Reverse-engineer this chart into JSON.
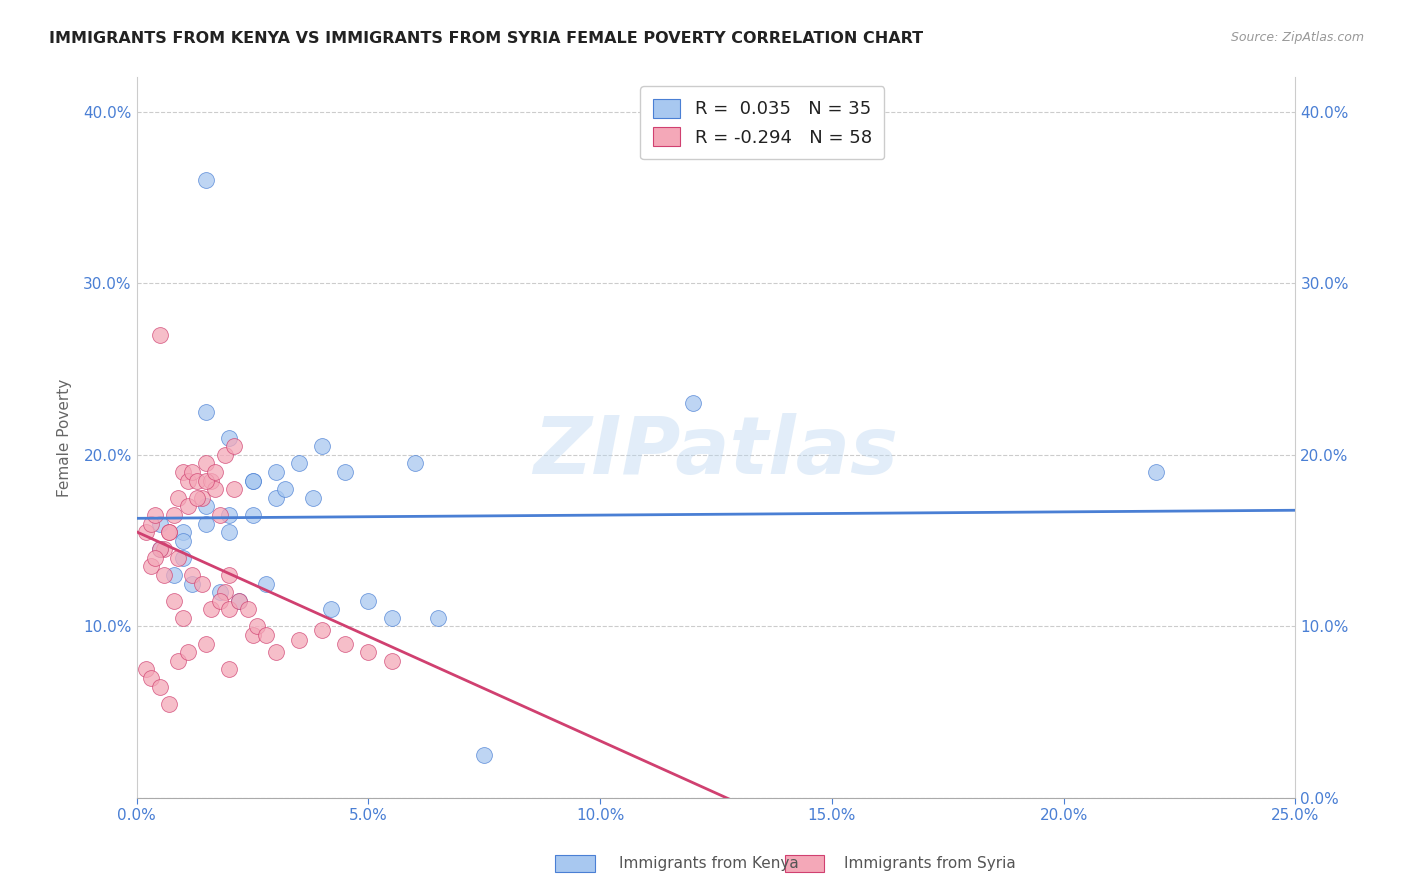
{
  "title": "IMMIGRANTS FROM KENYA VS IMMIGRANTS FROM SYRIA FEMALE POVERTY CORRELATION CHART",
  "source": "Source: ZipAtlas.com",
  "xlabel_kenya": "Immigrants from Kenya",
  "xlabel_syria": "Immigrants from Syria",
  "ylabel": "Female Poverty",
  "kenya_R": 0.035,
  "kenya_N": 35,
  "syria_R": -0.294,
  "syria_N": 58,
  "xlim": [
    0.0,
    0.25
  ],
  "ylim": [
    0.0,
    0.42
  ],
  "xticks": [
    0.0,
    0.05,
    0.1,
    0.15,
    0.2,
    0.25
  ],
  "yticks": [
    0.0,
    0.1,
    0.2,
    0.3,
    0.4
  ],
  "kenya_color": "#a8c8f0",
  "syria_color": "#f4a8b8",
  "kenya_line_color": "#4a7fd4",
  "syria_line_color": "#d04070",
  "kenya_scatter_x": [
    0.005,
    0.01,
    0.015,
    0.02,
    0.025,
    0.03,
    0.01,
    0.015,
    0.02,
    0.025,
    0.03,
    0.035,
    0.04,
    0.045,
    0.015,
    0.02,
    0.025,
    0.005,
    0.01,
    0.008,
    0.012,
    0.018,
    0.022,
    0.028,
    0.032,
    0.038,
    0.042,
    0.015,
    0.05,
    0.06,
    0.22,
    0.12,
    0.055,
    0.065,
    0.075
  ],
  "kenya_scatter_y": [
    0.16,
    0.155,
    0.16,
    0.165,
    0.185,
    0.19,
    0.14,
    0.17,
    0.155,
    0.165,
    0.175,
    0.195,
    0.205,
    0.19,
    0.225,
    0.21,
    0.185,
    0.145,
    0.15,
    0.13,
    0.125,
    0.12,
    0.115,
    0.125,
    0.18,
    0.175,
    0.11,
    0.36,
    0.115,
    0.195,
    0.19,
    0.23,
    0.105,
    0.105,
    0.025
  ],
  "syria_scatter_x": [
    0.002,
    0.003,
    0.004,
    0.005,
    0.006,
    0.007,
    0.008,
    0.009,
    0.01,
    0.011,
    0.012,
    0.013,
    0.014,
    0.015,
    0.016,
    0.017,
    0.018,
    0.019,
    0.02,
    0.021,
    0.003,
    0.005,
    0.007,
    0.009,
    0.011,
    0.013,
    0.015,
    0.017,
    0.019,
    0.021,
    0.004,
    0.006,
    0.008,
    0.01,
    0.012,
    0.014,
    0.016,
    0.018,
    0.02,
    0.025,
    0.03,
    0.035,
    0.04,
    0.045,
    0.05,
    0.055,
    0.022,
    0.024,
    0.026,
    0.028,
    0.002,
    0.003,
    0.005,
    0.007,
    0.009,
    0.011,
    0.015,
    0.02
  ],
  "syria_scatter_y": [
    0.155,
    0.16,
    0.165,
    0.27,
    0.145,
    0.155,
    0.165,
    0.175,
    0.19,
    0.185,
    0.19,
    0.185,
    0.175,
    0.195,
    0.185,
    0.18,
    0.165,
    0.12,
    0.13,
    0.18,
    0.135,
    0.145,
    0.155,
    0.14,
    0.17,
    0.175,
    0.185,
    0.19,
    0.2,
    0.205,
    0.14,
    0.13,
    0.115,
    0.105,
    0.13,
    0.125,
    0.11,
    0.115,
    0.11,
    0.095,
    0.085,
    0.092,
    0.098,
    0.09,
    0.085,
    0.08,
    0.115,
    0.11,
    0.1,
    0.095,
    0.075,
    0.07,
    0.065,
    0.055,
    0.08,
    0.085,
    0.09,
    0.075
  ],
  "watermark": "ZIPatlas",
  "background_color": "#ffffff",
  "grid_color": "#cccccc"
}
